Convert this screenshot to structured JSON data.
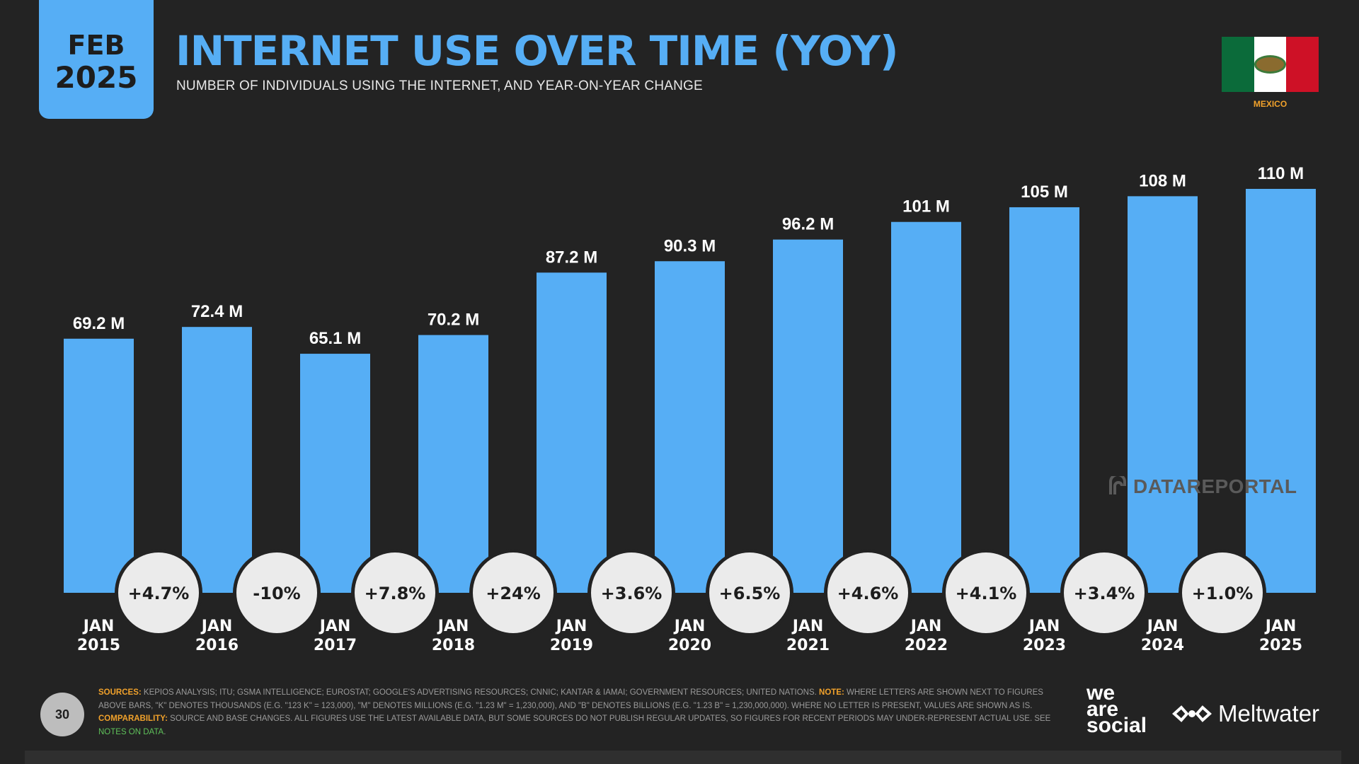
{
  "header": {
    "month": "FEB",
    "year": "2025",
    "title": "INTERNET USE OVER TIME (YOY)",
    "subtitle": "NUMBER OF INDIVIDUALS USING THE INTERNET, AND YEAR-ON-YEAR CHANGE",
    "country": "MEXICO"
  },
  "colors": {
    "bar": "#56aef5",
    "accent_orange": "#f0a12b",
    "background": "#232323"
  },
  "chart_data": {
    "type": "bar",
    "categories": [
      "JAN 2015",
      "JAN 2016",
      "JAN 2017",
      "JAN 2018",
      "JAN 2019",
      "JAN 2020",
      "JAN 2021",
      "JAN 2022",
      "JAN 2023",
      "JAN 2024",
      "JAN 2025"
    ],
    "values": [
      69.2,
      72.4,
      65.1,
      70.2,
      87.2,
      90.3,
      96.2,
      101,
      105,
      108,
      110
    ],
    "value_labels": [
      "69.2 M",
      "72.4 M",
      "65.1 M",
      "70.2 M",
      "87.2 M",
      "90.3 M",
      "96.2 M",
      "101 M",
      "105 M",
      "108 M",
      "110 M"
    ],
    "yoy_change": [
      "+4.7%",
      "-10%",
      "+7.8%",
      "+24%",
      "+3.6%",
      "+6.5%",
      "+4.6%",
      "+4.1%",
      "+3.4%",
      "+1.0%"
    ],
    "unit": "M",
    "ylim": [
      0,
      110
    ],
    "grid": false
  },
  "watermark": "DATAREPORTAL",
  "footer": {
    "page_number": "30",
    "sources_key": "SOURCES:",
    "sources_text": " KEPIOS ANALYSIS; ITU; GSMA INTELLIGENCE; EUROSTAT; GOOGLE'S ADVERTISING RESOURCES; CNNIC; KANTAR & IAMAI; GOVERNMENT RESOURCES; UNITED NATIONS. ",
    "note_key": "NOTE:",
    "note_text": " WHERE LETTERS ARE SHOWN NEXT TO FIGURES ABOVE BARS, \"K\" DENOTES THOUSANDS (E.G. \"123 K\" = 123,000), \"M\" DENOTES MILLIONS (E.G. \"1.23 M\" = 1,230,000), AND \"B\" DENOTES BILLIONS (E.G. \"1.23 B\" = 1,230,000,000). WHERE NO LETTER IS PRESENT, VALUES ARE SHOWN AS IS. ",
    "comparability_key": "COMPARABILITY:",
    "comparability_text": " SOURCE AND BASE CHANGES. ALL FIGURES USE THE LATEST AVAILABLE DATA, BUT SOME SOURCES DO NOT PUBLISH REGULAR UPDATES, SO FIGURES FOR RECENT PERIODS MAY UNDER-REPRESENT ACTUAL USE. SEE ",
    "notes_link": "NOTES ON DATA",
    "notes_end": ".",
    "brand_line1": "we",
    "brand_line2": "are",
    "brand_line3": "social",
    "brand_meltwater": "Meltwater"
  }
}
